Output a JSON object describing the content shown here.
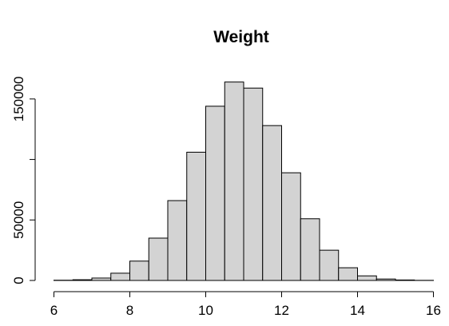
{
  "chart_data": {
    "type": "bar",
    "title": "Weight",
    "xlabel": "",
    "ylabel": "",
    "bar_color": "#d3d3d3",
    "border_color": "#000000",
    "xlim": [
      5.8,
      16.2
    ],
    "ylim": [
      0,
      175000
    ],
    "x_ticks": [
      6,
      8,
      10,
      12,
      14,
      16
    ],
    "x_tick_labels": [
      "6",
      "8",
      "10",
      "12",
      "14",
      "16"
    ],
    "y_ticks": [
      0,
      50000,
      100000,
      150000
    ],
    "y_tick_labels": [
      "0",
      "50000",
      "",
      "150000"
    ],
    "bins": [
      {
        "x0": 6.0,
        "x1": 6.5,
        "value": 200
      },
      {
        "x0": 6.5,
        "x1": 7.0,
        "value": 600
      },
      {
        "x0": 7.0,
        "x1": 7.5,
        "value": 2000
      },
      {
        "x0": 7.5,
        "x1": 8.0,
        "value": 6000
      },
      {
        "x0": 8.0,
        "x1": 8.5,
        "value": 16000
      },
      {
        "x0": 8.5,
        "x1": 9.0,
        "value": 35000
      },
      {
        "x0": 9.0,
        "x1": 9.5,
        "value": 66000
      },
      {
        "x0": 9.5,
        "x1": 10.0,
        "value": 106000
      },
      {
        "x0": 10.0,
        "x1": 10.5,
        "value": 144000
      },
      {
        "x0": 10.5,
        "x1": 11.0,
        "value": 164000
      },
      {
        "x0": 11.0,
        "x1": 11.5,
        "value": 159000
      },
      {
        "x0": 11.5,
        "x1": 12.0,
        "value": 128000
      },
      {
        "x0": 12.0,
        "x1": 12.5,
        "value": 89000
      },
      {
        "x0": 12.5,
        "x1": 13.0,
        "value": 51000
      },
      {
        "x0": 13.0,
        "x1": 13.5,
        "value": 25000
      },
      {
        "x0": 13.5,
        "x1": 14.0,
        "value": 10500
      },
      {
        "x0": 14.0,
        "x1": 14.5,
        "value": 3800
      },
      {
        "x0": 14.5,
        "x1": 15.0,
        "value": 1200
      },
      {
        "x0": 15.0,
        "x1": 15.5,
        "value": 400
      },
      {
        "x0": 15.5,
        "x1": 16.0,
        "value": 100
      }
    ]
  }
}
